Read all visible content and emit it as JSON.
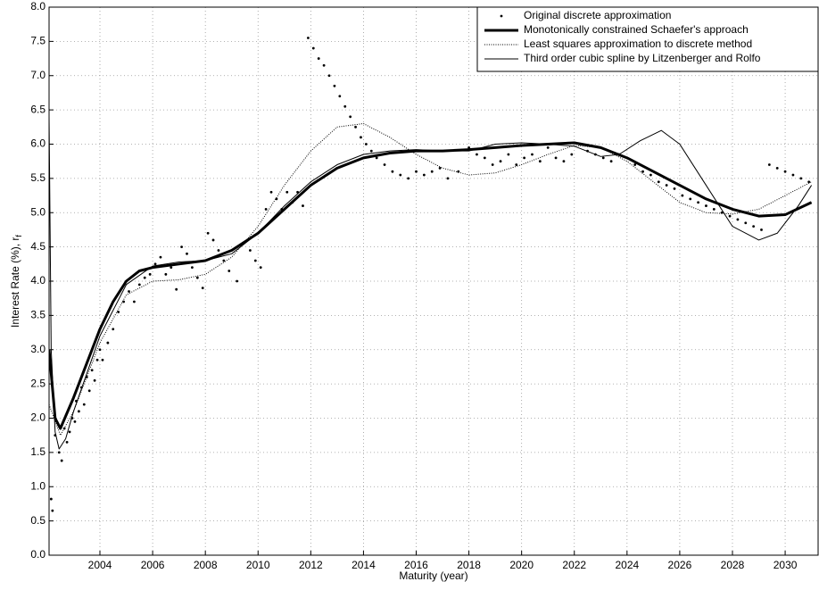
{
  "chart_data": {
    "type": "line",
    "xlabel": "Maturity (year)",
    "ylabel": "Interest Rate (%), r",
    "ylabel_sub": "f",
    "xlim": [
      2002.07,
      2031.25
    ],
    "ylim": [
      0,
      8
    ],
    "xticks": [
      2004,
      2006,
      2008,
      2010,
      2012,
      2014,
      2016,
      2018,
      2020,
      2022,
      2024,
      2026,
      2028,
      2030
    ],
    "yticks": [
      {
        "value": 0,
        "label": "0.0"
      },
      {
        "value": 0.5,
        "label": "0.5"
      },
      {
        "value": 1,
        "label": "1.0"
      },
      {
        "value": 1.5,
        "label": "1.5"
      },
      {
        "value": 2,
        "label": "2.0"
      },
      {
        "value": 2.5,
        "label": "2.5"
      },
      {
        "value": 3,
        "label": "3.0"
      },
      {
        "value": 3.5,
        "label": "3.5"
      },
      {
        "value": 4,
        "label": "4.0"
      },
      {
        "value": 4.5,
        "label": "4.5"
      },
      {
        "value": 5,
        "label": "5.0"
      },
      {
        "value": 5.5,
        "label": "5.5"
      },
      {
        "value": 6,
        "label": "6.0"
      },
      {
        "value": 6.5,
        "label": "6.5"
      },
      {
        "value": 7,
        "label": "7.0"
      },
      {
        "value": 7.5,
        "label": "7.5"
      },
      {
        "value": 8,
        "label": "8.0"
      }
    ],
    "grid": true,
    "legend": "upper right",
    "series": [
      {
        "name": "Original discrete approximation",
        "color": "#000000",
        "style": "dots",
        "x": [
          2002.15,
          2002.2,
          2002.3,
          2002.45,
          2002.55,
          2002.65,
          2002.75,
          2002.85,
          2002.95,
          2003.05,
          2003.1,
          2003.2,
          2003.3,
          2003.4,
          2003.5,
          2003.6,
          2003.7,
          2003.8,
          2003.9,
          2004,
          2004.1,
          2004.3,
          2004.5,
          2004.7,
          2004.9,
          2005.1,
          2005.3,
          2005.5,
          2005.7,
          2005.9,
          2006.1,
          2006.3,
          2006.5,
          2006.7,
          2006.9,
          2007.1,
          2007.3,
          2007.5,
          2007.7,
          2007.9,
          2008.1,
          2008.3,
          2008.5,
          2008.7,
          2008.9,
          2009.2,
          2009.7,
          2009.9,
          2010.1,
          2010.3,
          2010.5,
          2010.7,
          2010.9,
          2011.1,
          2011.3,
          2011.5,
          2011.7,
          2011.9,
          2012.1,
          2012.3,
          2012.5,
          2012.7,
          2012.9,
          2013.1,
          2013.3,
          2013.5,
          2013.7,
          2013.9,
          2014.1,
          2014.3,
          2014.5,
          2014.8,
          2015.1,
          2015.4,
          2015.7,
          2016,
          2016.3,
          2016.6,
          2016.9,
          2017.2,
          2017.6,
          2018,
          2018.3,
          2018.6,
          2018.9,
          2019.2,
          2019.5,
          2019.8,
          2020.1,
          2020.4,
          2020.7,
          2021,
          2021.3,
          2021.6,
          2021.9,
          2022.2,
          2022.5,
          2022.8,
          2023.1,
          2023.4,
          2023.7,
          2024,
          2024.3,
          2024.6,
          2024.9,
          2025.2,
          2025.5,
          2025.8,
          2026.1,
          2026.4,
          2026.7,
          2027,
          2027.3,
          2027.6,
          2027.9,
          2028.2,
          2028.5,
          2028.8,
          2029.1,
          2029.4,
          2029.7,
          2030,
          2030.3,
          2030.6,
          2030.9
        ],
        "values": [
          0.82,
          0.65,
          1.75,
          1.5,
          1.38,
          1.85,
          1.65,
          1.8,
          2.0,
          1.95,
          2.25,
          2.1,
          2.45,
          2.2,
          2.6,
          2.4,
          2.7,
          2.55,
          2.85,
          3.0,
          2.85,
          3.1,
          3.3,
          3.55,
          3.7,
          3.85,
          3.7,
          3.95,
          4.05,
          4.1,
          4.25,
          4.35,
          4.1,
          4.2,
          3.88,
          4.5,
          4.4,
          4.2,
          4.05,
          3.9,
          4.7,
          4.6,
          4.45,
          4.3,
          4.15,
          4.0,
          4.45,
          4.3,
          4.2,
          5.05,
          5.3,
          5.2,
          5.05,
          5.3,
          5.15,
          5.3,
          5.1,
          7.55,
          7.4,
          7.25,
          7.15,
          7.0,
          6.85,
          6.7,
          6.55,
          6.4,
          6.25,
          6.1,
          6.0,
          5.9,
          5.8,
          5.7,
          5.6,
          5.55,
          5.5,
          5.6,
          5.55,
          5.6,
          5.65,
          5.5,
          5.6,
          5.95,
          5.85,
          5.8,
          5.7,
          5.75,
          5.85,
          5.7,
          5.8,
          5.85,
          5.75,
          5.95,
          5.8,
          5.75,
          5.85,
          6.0,
          5.9,
          5.85,
          5.8,
          5.75,
          5.85,
          5.8,
          5.7,
          5.6,
          5.55,
          5.45,
          5.4,
          5.35,
          5.25,
          5.2,
          5.15,
          5.1,
          5.05,
          5.0,
          4.95,
          4.9,
          4.85,
          4.8,
          4.75,
          5.7,
          5.65,
          5.6,
          5.55,
          5.5,
          5.45
        ]
      },
      {
        "name": "Monotonically constrained Schaefer's approach",
        "color": "#000000",
        "style": "thick",
        "x": [
          2002.07,
          2002.3,
          2002.5,
          2003,
          2003.5,
          2004,
          2004.5,
          2005,
          2005.5,
          2006,
          2007,
          2008,
          2009,
          2010,
          2011,
          2012,
          2013,
          2014,
          2015,
          2016,
          2017,
          2018,
          2019,
          2020,
          2021,
          2022,
          2023,
          2024,
          2025,
          2026,
          2027,
          2028,
          2029,
          2030,
          2031
        ],
        "values": [
          3.0,
          2.0,
          1.85,
          2.3,
          2.8,
          3.3,
          3.7,
          4.0,
          4.15,
          4.2,
          4.25,
          4.3,
          4.45,
          4.7,
          5.05,
          5.4,
          5.65,
          5.8,
          5.87,
          5.9,
          5.9,
          5.92,
          5.95,
          5.98,
          6.0,
          6.02,
          5.95,
          5.8,
          5.6,
          5.4,
          5.2,
          5.05,
          4.95,
          4.97,
          5.15
        ]
      },
      {
        "name": "Least squares approximation to discrete method",
        "color": "#000000",
        "style": "dotted",
        "x": [
          2002.07,
          2002.5,
          2003,
          2004,
          2005,
          2006,
          2007,
          2008,
          2009,
          2010,
          2011,
          2012,
          2013,
          2014,
          2015,
          2016,
          2017,
          2018,
          2019,
          2020,
          2021,
          2022,
          2023,
          2024,
          2025,
          2026,
          2027,
          2028,
          2029,
          2030,
          2031
        ],
        "values": [
          2.2,
          1.75,
          2.1,
          3.1,
          3.8,
          4.0,
          4.02,
          4.1,
          4.35,
          4.8,
          5.4,
          5.9,
          6.25,
          6.3,
          6.1,
          5.85,
          5.65,
          5.55,
          5.58,
          5.7,
          5.85,
          5.98,
          5.95,
          5.75,
          5.45,
          5.15,
          5.0,
          4.98,
          5.05,
          5.25,
          5.45
        ]
      },
      {
        "name": "Third order cubic spline by Litzenberger and Rolfo",
        "color": "#000000",
        "style": "thin",
        "x": [
          2002.07,
          2002.15,
          2002.3,
          2002.45,
          2002.7,
          2003,
          2004,
          2005,
          2006,
          2007,
          2008,
          2009,
          2010,
          2011,
          2012,
          2013,
          2014,
          2015,
          2016,
          2017,
          2018,
          2019,
          2020,
          2021,
          2022,
          2023,
          2023.7,
          2024.5,
          2025.3,
          2026,
          2027,
          2028,
          2029,
          2029.7,
          2030.5,
          2031
        ],
        "values": [
          6.4,
          3.0,
          1.8,
          1.55,
          1.7,
          2.1,
          3.2,
          3.95,
          4.22,
          4.28,
          4.3,
          4.4,
          4.7,
          5.1,
          5.45,
          5.7,
          5.85,
          5.9,
          5.92,
          5.9,
          5.9,
          6.0,
          6.02,
          6.0,
          5.97,
          5.82,
          5.85,
          6.05,
          6.2,
          6.0,
          5.4,
          4.8,
          4.6,
          4.7,
          5.1,
          5.4
        ]
      }
    ]
  }
}
